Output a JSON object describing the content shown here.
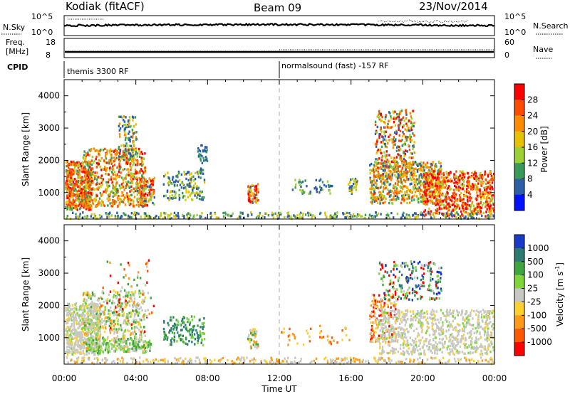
{
  "header": {
    "station": "Kodiak (fitACF)",
    "beam": "Beam 09",
    "date": "23/Nov/2014"
  },
  "chart_data": [
    {
      "id": "sky-noise",
      "type": "line",
      "ylabel": "N.Sky",
      "right_label": "N.Search",
      "ticks_left": [
        "10^5",
        "10^0"
      ],
      "ticks_right": [
        "10^5",
        "10^0"
      ]
    },
    {
      "id": "frequency",
      "type": "line",
      "ylabel_lines": [
        "Freq.",
        "[MHz]"
      ],
      "right_label": "Nave",
      "ticks_left": [
        "18",
        "8"
      ],
      "ticks_right": [
        "60",
        "0"
      ]
    },
    {
      "id": "cpid",
      "type": "table",
      "label": "CPID",
      "segments": [
        {
          "start": "00:00",
          "text": "themis 3300 RF"
        },
        {
          "start": "12:00",
          "text": "normalsound (fast) -157 RF"
        }
      ]
    },
    {
      "id": "power",
      "type": "heatmap",
      "ylabel": "Slant Range [km]",
      "ylim": [
        180,
        4500
      ],
      "yticks": [
        "4000",
        "3000",
        "2000",
        "1000"
      ],
      "colorbar_label": "Power [dB]",
      "colorbar_ticks": [
        "28",
        "24",
        "20",
        "16",
        "12",
        "8",
        "4"
      ],
      "colorbar_colors": [
        "#ff0000",
        "#ff4b00",
        "#ff8c00",
        "#e7c200",
        "#9bd135",
        "#3a9a5a",
        "#2d5fa6",
        "#0011ff"
      ],
      "vline": "12:00"
    },
    {
      "id": "velocity",
      "type": "heatmap",
      "ylabel": "Slant Range [km]",
      "ylim": [
        180,
        4500
      ],
      "yticks": [
        "4000",
        "3000",
        "2000",
        "1000"
      ],
      "colorbar_label": "Velocity [m s",
      "colorbar_label_sup": "-1",
      "colorbar_ticks": [
        "1000",
        "500",
        "100",
        "25",
        "-25",
        "-100",
        "-500",
        "-1000"
      ],
      "colorbar_colors": [
        "#1a3ac8",
        "#2c7b72",
        "#3fa63f",
        "#7fd63a",
        "#c8c8c2",
        "#ffd030",
        "#ff9a1a",
        "#ff5a00",
        "#ff0000"
      ],
      "vline": "12:00"
    }
  ],
  "xaxis": {
    "label": "Time UT",
    "ticks": [
      "00:00",
      "04:00",
      "08:00",
      "12:00",
      "16:00",
      "20:00",
      "00:00"
    ],
    "hours": [
      0,
      24
    ]
  }
}
